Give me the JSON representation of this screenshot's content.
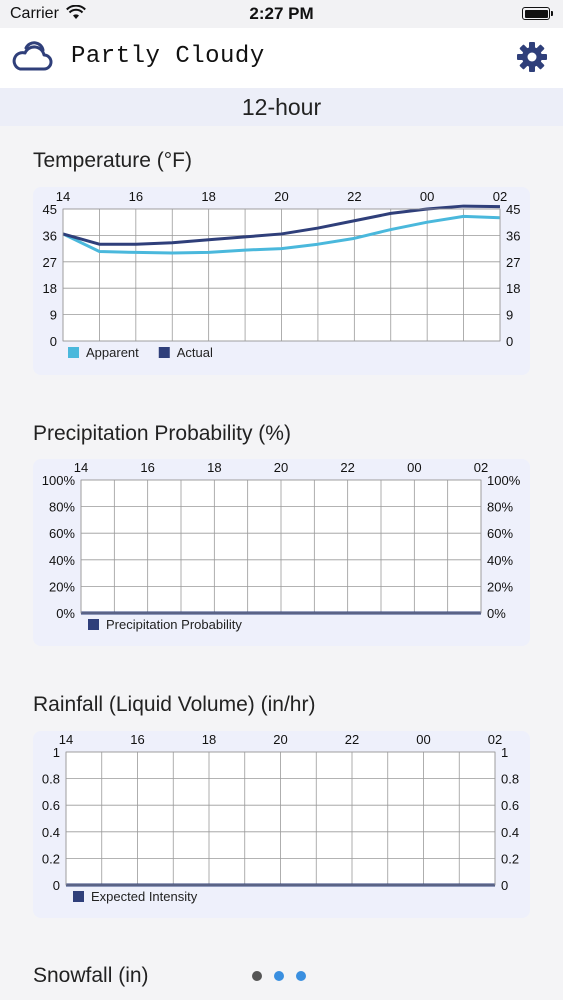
{
  "status_bar": {
    "carrier": "Carrier",
    "time": "2:27 PM"
  },
  "header": {
    "title": "Partly Cloudy",
    "weather_icon": "partly-cloudy-icon",
    "settings_icon": "gear-icon"
  },
  "section": {
    "title": "12-hour"
  },
  "charts": [
    {
      "title": "Temperature (°F)",
      "legend": [
        {
          "label": "Apparent",
          "color": "#4ab8dc"
        },
        {
          "label": "Actual",
          "color": "#2f3f7a"
        }
      ]
    },
    {
      "title": "Precipitation Probability (%)",
      "legend": [
        {
          "label": "Precipitation Probability",
          "color": "#2f3f7a"
        }
      ]
    },
    {
      "title": "Rainfall (Liquid Volume) (in/hr)",
      "legend": [
        {
          "label": "Expected Intensity",
          "color": "#2f3f7a"
        }
      ]
    },
    {
      "title": "Snowfall (in)"
    }
  ],
  "page_indicator": {
    "count": 3,
    "current": 0,
    "colors": {
      "active": "#555555",
      "inactive": "#3a8fe0"
    }
  },
  "chart_data": [
    {
      "type": "line",
      "title": "Temperature (°F)",
      "x_ticks": [
        "14",
        "16",
        "18",
        "20",
        "22",
        "00",
        "02"
      ],
      "y_ticks": [
        "0",
        "9",
        "18",
        "27",
        "36",
        "45"
      ],
      "ylim": [
        0,
        45
      ],
      "x": [
        14,
        15,
        16,
        17,
        18,
        19,
        20,
        21,
        22,
        23,
        24,
        25,
        26
      ],
      "series": [
        {
          "name": "Apparent",
          "color": "#4ab8dc",
          "values": [
            36.5,
            30.5,
            30.2,
            30.0,
            30.2,
            31.0,
            31.5,
            33.0,
            35.0,
            38.0,
            40.5,
            42.5,
            42.0
          ]
        },
        {
          "name": "Actual",
          "color": "#2f3f7a",
          "values": [
            36.5,
            33.0,
            33.0,
            33.5,
            34.5,
            35.5,
            36.5,
            38.5,
            41.0,
            43.5,
            45.0,
            46.0,
            45.8
          ]
        }
      ],
      "grid": true,
      "legend_position": "bottom-left"
    },
    {
      "type": "line",
      "title": "Precipitation Probability (%)",
      "x_ticks": [
        "14",
        "16",
        "18",
        "20",
        "22",
        "00",
        "02"
      ],
      "y_ticks": [
        "0%",
        "20%",
        "40%",
        "60%",
        "80%",
        "100%"
      ],
      "ylim": [
        0,
        100
      ],
      "x": [
        14,
        15,
        16,
        17,
        18,
        19,
        20,
        21,
        22,
        23,
        24,
        25,
        26
      ],
      "series": [
        {
          "name": "Precipitation Probability",
          "color": "#2f3f7a",
          "values": [
            0,
            0,
            0,
            0,
            0,
            0,
            0,
            0,
            0,
            0,
            0,
            0,
            0
          ]
        }
      ],
      "grid": true,
      "legend_position": "bottom-left"
    },
    {
      "type": "line",
      "title": "Rainfall (Liquid Volume) (in/hr)",
      "x_ticks": [
        "14",
        "16",
        "18",
        "20",
        "22",
        "00",
        "02"
      ],
      "y_ticks": [
        "0",
        "0.2",
        "0.4",
        "0.6",
        "0.8",
        "1"
      ],
      "ylim": [
        0,
        1
      ],
      "x": [
        14,
        15,
        16,
        17,
        18,
        19,
        20,
        21,
        22,
        23,
        24,
        25,
        26
      ],
      "series": [
        {
          "name": "Expected Intensity",
          "color": "#2f3f7a",
          "values": [
            0,
            0,
            0,
            0,
            0,
            0,
            0,
            0,
            0,
            0,
            0,
            0,
            0
          ]
        }
      ],
      "grid": true,
      "legend_position": "bottom-left"
    }
  ]
}
